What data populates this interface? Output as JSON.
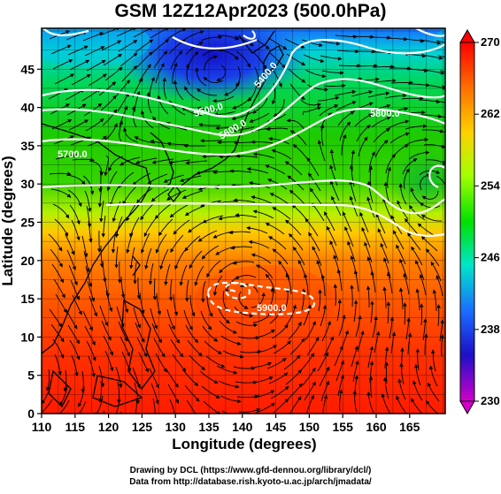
{
  "title": "GSM 12Z12Apr2023 (500.0hPa)",
  "xaxis": {
    "label": "Longitude (degrees)",
    "ticks": [
      "110",
      "115",
      "120",
      "125",
      "130",
      "135",
      "140",
      "145",
      "150",
      "155",
      "160",
      "165"
    ]
  },
  "yaxis": {
    "label": "Latitude  (degrees)",
    "ticks": [
      "0",
      "5",
      "10",
      "15",
      "20",
      "25",
      "30",
      "35",
      "40",
      "45"
    ]
  },
  "colorbar": {
    "ticks": [
      "270",
      "262",
      "254",
      "246",
      "238",
      "230"
    ],
    "colors": [
      "#ff0000",
      "#ff6a00",
      "#ffd000",
      "#a4ff00",
      "#00e000",
      "#00e6c8",
      "#1a6cff",
      "#1c10c8",
      "#d000c8"
    ]
  },
  "contours": {
    "labels": [
      "5400.0",
      "5500.0",
      "5600.0",
      "5700.0",
      "5800.0",
      "5900.0",
      "5500.0",
      "5400.0",
      "5700.0",
      "5900.0"
    ]
  },
  "credits": {
    "line1": "Drawing by DCL (https://www.gfd-dennou.org/library/dcl/)",
    "line2": "Data from http://database.rish.kyoto-u.ac.jp/arch/jmadata/"
  }
}
